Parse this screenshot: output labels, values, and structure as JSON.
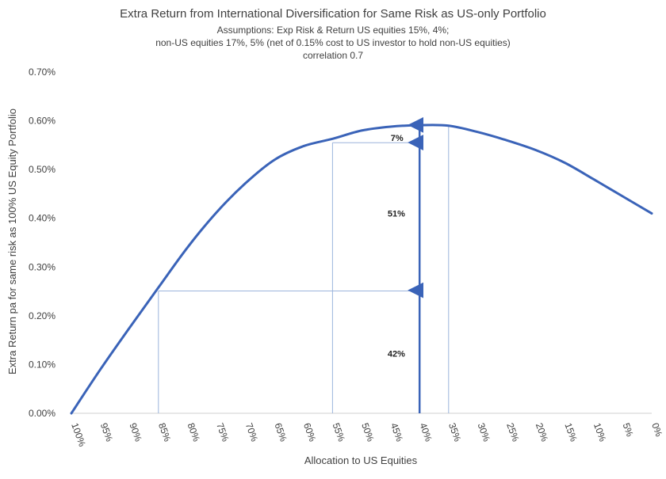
{
  "chart_data": {
    "type": "line",
    "title": "Extra Return from International Diversification for Same Risk as US-only Portfolio",
    "subtitle_lines": [
      "Assumptions: Exp Risk & Return US equities 15%, 4%;",
      "non-US equities 17%, 5% (net of 0.15% cost to US investor to hold non-US equities)",
      "correlation 0.7"
    ],
    "xlabel": "Allocation to US Equities",
    "ylabel": "Extra Return pa for same risk as 100% US Equity Portfolio",
    "x_reversed": true,
    "xlim": [
      0,
      100
    ],
    "ylim": [
      0,
      0.7
    ],
    "x_ticks": [
      100,
      95,
      90,
      85,
      80,
      75,
      70,
      65,
      60,
      55,
      50,
      45,
      40,
      35,
      30,
      25,
      20,
      15,
      10,
      5,
      0
    ],
    "x_tick_labels": [
      "100%",
      "95%",
      "90%",
      "85%",
      "80%",
      "75%",
      "70%",
      "65%",
      "60%",
      "55%",
      "50%",
      "45%",
      "40%",
      "35%",
      "30%",
      "25%",
      "20%",
      "15%",
      "10%",
      "5%",
      "0%"
    ],
    "y_ticks": [
      0,
      0.1,
      0.2,
      0.3,
      0.4,
      0.5,
      0.6,
      0.7
    ],
    "y_tick_labels": [
      "0.00%",
      "0.10%",
      "0.20%",
      "0.30%",
      "0.40%",
      "0.50%",
      "0.60%",
      "0.70%"
    ],
    "grid": false,
    "legend": "none",
    "series": [
      {
        "color": "#3a63b8",
        "x": [
          100,
          95,
          90,
          85,
          80,
          75,
          70,
          65,
          60,
          55,
          50,
          45,
          40,
          35,
          30,
          25,
          20,
          15,
          10,
          5,
          0
        ],
        "y": [
          0.0,
          0.09,
          0.175,
          0.258,
          0.34,
          0.412,
          0.472,
          0.52,
          0.548,
          0.563,
          0.58,
          0.588,
          0.591,
          0.59,
          0.577,
          0.56,
          0.54,
          0.514,
          0.48,
          0.445,
          0.41
        ]
      }
    ],
    "reference_lines": {
      "color": "#9bb4dc",
      "verticals": [
        {
          "x": 85,
          "y_top": 0.251
        },
        {
          "x": 55,
          "y_top": 0.555
        },
        {
          "x": 35,
          "y_top": 0.591
        }
      ],
      "horizontals": [
        {
          "x_from": 85,
          "x_to": 40,
          "y": 0.251
        },
        {
          "x_from": 55,
          "x_to": 40,
          "y": 0.555
        }
      ]
    },
    "arrows": {
      "color": "#3a63b8",
      "x": 40,
      "segments": [
        {
          "y_from": 0.0,
          "y_to": 0.254
        },
        {
          "y_from": 0.254,
          "y_to": 0.557
        },
        {
          "y_from": 0.557,
          "y_to": 0.593
        }
      ]
    },
    "annotations": [
      {
        "text": "42%",
        "x": 42.5,
        "y": 0.123
      },
      {
        "text": "51%",
        "x": 42.5,
        "y": 0.41
      },
      {
        "text": "7%",
        "x": 42.8,
        "y": 0.565
      }
    ]
  }
}
